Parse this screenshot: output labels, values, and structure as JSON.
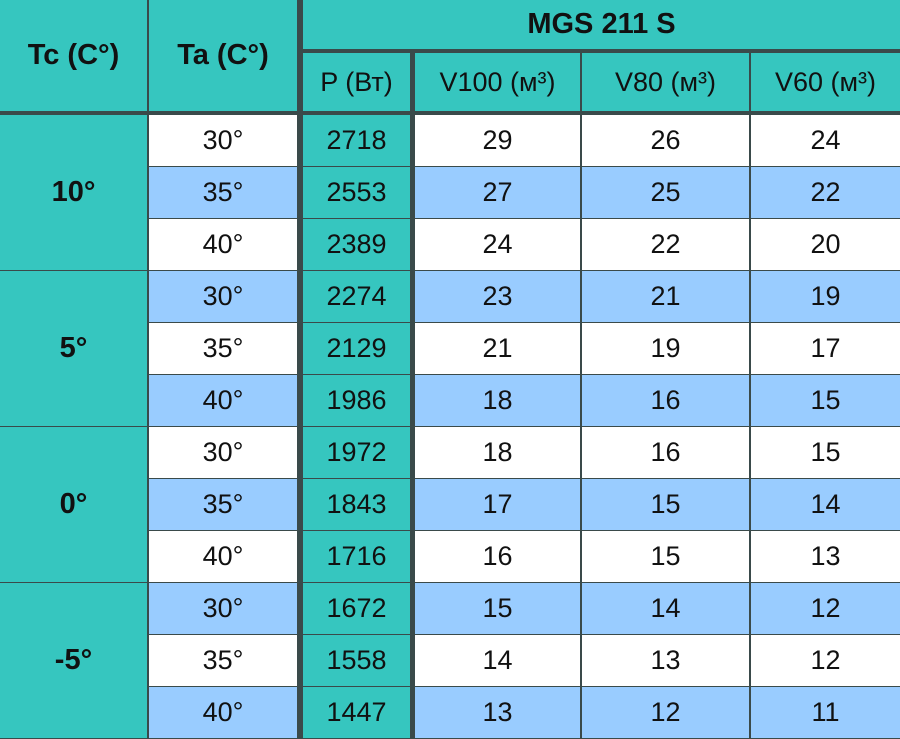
{
  "header": {
    "tc_label": "Tc (C°)",
    "ta_label": "Ta (C°)",
    "model": "MGS 211 S",
    "columns": [
      "P (Вт)",
      "V100 (м³)",
      "V80 (м³)",
      "V60 (м³)"
    ]
  },
  "groups": [
    {
      "tc": "10°",
      "rows": [
        [
          "30°",
          2718,
          29,
          26,
          24
        ],
        [
          "35°",
          2553,
          27,
          25,
          22
        ],
        [
          "40°",
          2389,
          24,
          22,
          20
        ]
      ]
    },
    {
      "tc": "5°",
      "rows": [
        [
          "30°",
          2274,
          23,
          21,
          19
        ],
        [
          "35°",
          2129,
          21,
          19,
          17
        ],
        [
          "40°",
          1986,
          18,
          16,
          15
        ]
      ]
    },
    {
      "tc": "0°",
      "rows": [
        [
          "30°",
          1972,
          18,
          16,
          15
        ],
        [
          "35°",
          1843,
          17,
          15,
          14
        ],
        [
          "40°",
          1716,
          16,
          15,
          13
        ]
      ]
    },
    {
      "tc": "-5°",
      "rows": [
        [
          "30°",
          1672,
          15,
          14,
          12
        ],
        [
          "35°",
          1558,
          14,
          13,
          12
        ],
        [
          "40°",
          1447,
          13,
          12,
          11
        ]
      ]
    }
  ]
}
